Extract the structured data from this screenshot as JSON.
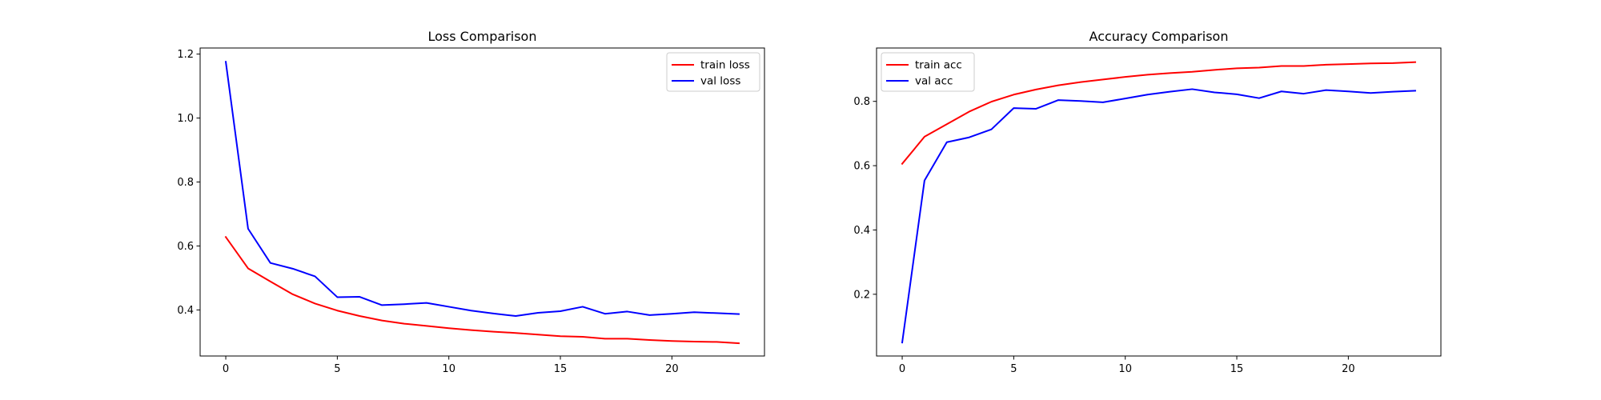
{
  "chart_data": [
    {
      "type": "line",
      "title": "Loss Comparison",
      "xlabel": "",
      "ylabel": "",
      "xlim": [
        -1.15,
        24.15
      ],
      "ylim": [
        0.256,
        1.219
      ],
      "xticks": [
        0,
        5,
        10,
        15,
        20
      ],
      "yticks": [
        0.4,
        0.6,
        0.8,
        1.0,
        1.2
      ],
      "ytick_labels": [
        "0.4",
        "0.6",
        "0.8",
        "1.0",
        "1.2"
      ],
      "grid": false,
      "legend": "top-right",
      "x": [
        0,
        1,
        2,
        3,
        4,
        5,
        6,
        7,
        8,
        9,
        10,
        11,
        12,
        13,
        14,
        15,
        16,
        17,
        18,
        19,
        20,
        21,
        22,
        23
      ],
      "series": [
        {
          "name": "train loss",
          "color": "#ff0000",
          "values": [
            0.628,
            0.53,
            0.489,
            0.449,
            0.42,
            0.398,
            0.381,
            0.367,
            0.357,
            0.35,
            0.343,
            0.337,
            0.332,
            0.328,
            0.323,
            0.318,
            0.316,
            0.31,
            0.31,
            0.306,
            0.303,
            0.301,
            0.3,
            0.296
          ]
        },
        {
          "name": "val loss",
          "color": "#0000ff",
          "values": [
            1.176,
            0.654,
            0.547,
            0.529,
            0.505,
            0.44,
            0.441,
            0.415,
            0.418,
            0.422,
            0.41,
            0.398,
            0.389,
            0.381,
            0.391,
            0.396,
            0.41,
            0.388,
            0.395,
            0.384,
            0.388,
            0.393,
            0.39,
            0.387
          ]
        }
      ]
    },
    {
      "type": "line",
      "title": "Accuracy Comparison",
      "xlabel": "",
      "ylabel": "",
      "xlim": [
        -1.15,
        24.15
      ],
      "ylim": [
        0.008,
        0.966
      ],
      "xticks": [
        0,
        5,
        10,
        15,
        20
      ],
      "yticks": [
        0.2,
        0.4,
        0.6,
        0.8
      ],
      "ytick_labels": [
        "0.2",
        "0.4",
        "0.6",
        "0.8"
      ],
      "grid": false,
      "legend": "top-left",
      "x": [
        0,
        1,
        2,
        3,
        4,
        5,
        6,
        7,
        8,
        9,
        10,
        11,
        12,
        13,
        14,
        15,
        16,
        17,
        18,
        19,
        20,
        21,
        22,
        23
      ],
      "series": [
        {
          "name": "train acc",
          "color": "#ff0000",
          "values": [
            0.606,
            0.69,
            0.729,
            0.768,
            0.799,
            0.821,
            0.837,
            0.85,
            0.86,
            0.868,
            0.876,
            0.883,
            0.888,
            0.892,
            0.898,
            0.903,
            0.905,
            0.91,
            0.91,
            0.914,
            0.916,
            0.918,
            0.919,
            0.922
          ]
        },
        {
          "name": "val acc",
          "color": "#0000ff",
          "values": [
            0.05,
            0.554,
            0.673,
            0.688,
            0.713,
            0.779,
            0.777,
            0.804,
            0.801,
            0.797,
            0.809,
            0.821,
            0.83,
            0.838,
            0.828,
            0.822,
            0.81,
            0.831,
            0.824,
            0.835,
            0.831,
            0.826,
            0.83,
            0.833
          ]
        }
      ]
    }
  ]
}
